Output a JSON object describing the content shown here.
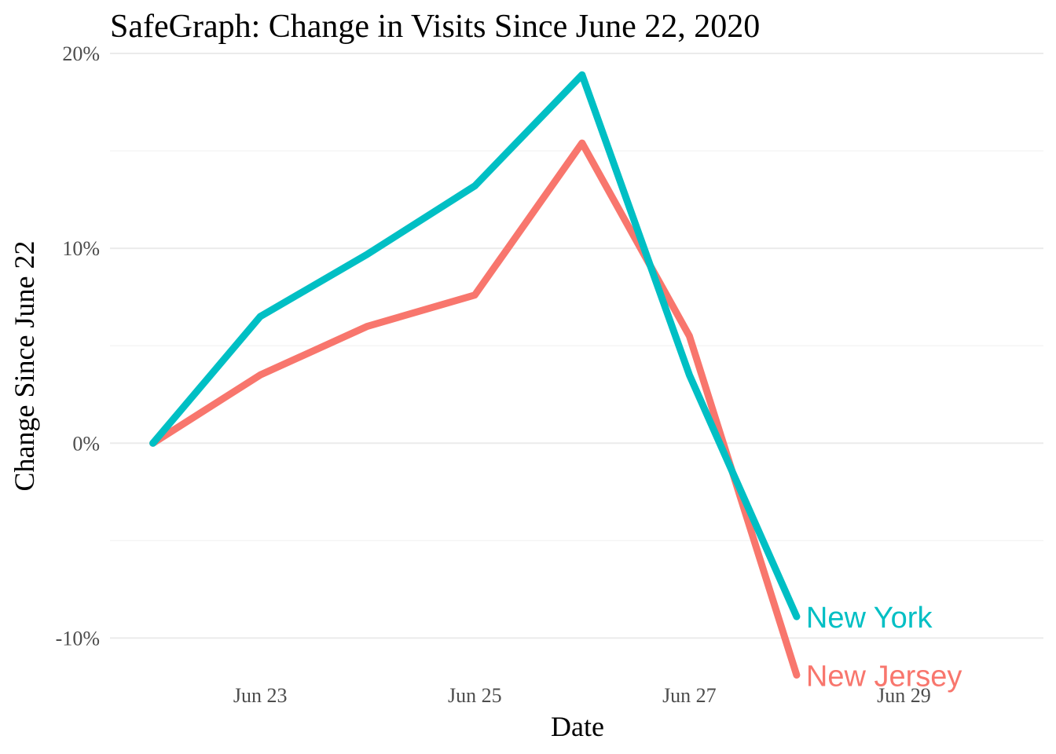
{
  "chart_data": {
    "type": "line",
    "title": "SafeGraph: Change in Visits Since June 22, 2020",
    "xlabel": "Date",
    "ylabel": "Change Since June 22",
    "x": [
      "2020-06-22",
      "2020-06-23",
      "2020-06-24",
      "2020-06-25",
      "2020-06-26",
      "2020-06-27",
      "2020-06-28"
    ],
    "xlim": [
      "2020-06-21.6",
      "2020-06-30.3"
    ],
    "xticks": [
      {
        "date": "2020-06-23",
        "label": "Jun 23"
      },
      {
        "date": "2020-06-25",
        "label": "Jun 25"
      },
      {
        "date": "2020-06-27",
        "label": "Jun 27"
      },
      {
        "date": "2020-06-29",
        "label": "Jun 29"
      }
    ],
    "ylim": [
      -0.12,
      0.2
    ],
    "yticks": [
      {
        "value": -0.1,
        "label": "-10%"
      },
      {
        "value": 0.0,
        "label": "0%"
      },
      {
        "value": 0.1,
        "label": "10%"
      },
      {
        "value": 0.2,
        "label": "20%"
      }
    ],
    "grid": true,
    "legend": "direct labels at line ends",
    "series": [
      {
        "name": "New York",
        "color": "#00BFC4",
        "values": [
          0.0,
          0.065,
          0.097,
          0.132,
          0.189,
          0.035,
          -0.089
        ]
      },
      {
        "name": "New Jersey",
        "color": "#F8766D",
        "values": [
          0.0,
          0.035,
          0.06,
          0.076,
          0.154,
          0.055,
          -0.119
        ]
      }
    ]
  }
}
